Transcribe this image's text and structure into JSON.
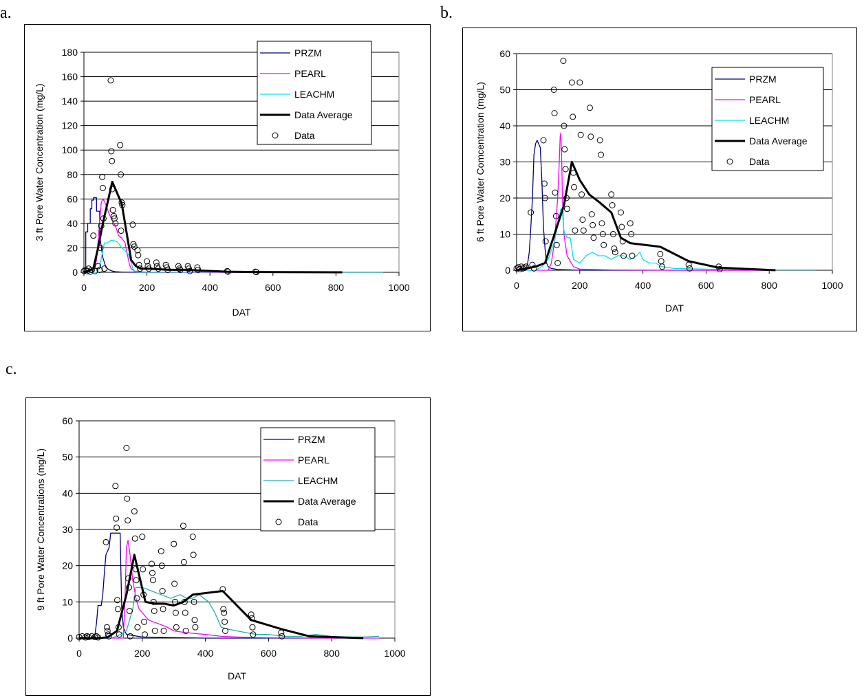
{
  "panel_letters": [
    "a.",
    "b.",
    "c."
  ],
  "chart_data": [
    {
      "type": "line",
      "ylabel": "3 ft Pore Water Concentration (mg/L)",
      "xlabel": "DAT",
      "xlim": [
        0,
        1000
      ],
      "ylim": [
        0,
        180
      ],
      "xticks": [
        0,
        200,
        400,
        600,
        800,
        1000
      ],
      "yticks": [
        0,
        20,
        40,
        60,
        80,
        100,
        120,
        140,
        160,
        180
      ],
      "grid": "horizontal",
      "legend": [
        "PRZM",
        "PEARL",
        "LEACHM",
        "Data Average",
        "Data"
      ],
      "series": [
        {
          "name": "PRZM",
          "color": "#000080",
          "x": [
            0,
            6,
            6,
            12,
            12,
            20,
            20,
            25,
            25,
            30,
            30,
            40,
            40,
            50,
            50,
            60,
            70,
            80,
            90,
            100,
            120,
            150,
            200,
            400,
            820
          ],
          "y": [
            0,
            0,
            33,
            33,
            40,
            40,
            52,
            52,
            59,
            59,
            61,
            61,
            50,
            50,
            30,
            12,
            4,
            2,
            1,
            0.5,
            0.2,
            0.1,
            0,
            0,
            0
          ]
        },
        {
          "name": "PEARL",
          "color": "#ff00ff",
          "x": [
            0,
            30,
            40,
            50,
            55,
            60,
            65,
            70,
            80,
            90,
            100,
            110,
            120,
            125,
            130,
            135,
            140,
            145,
            150,
            160,
            180,
            200,
            300,
            400,
            600,
            820
          ],
          "y": [
            0,
            0,
            10,
            42,
            57,
            60,
            58,
            55,
            48,
            42,
            38,
            30,
            28,
            26,
            25,
            18,
            12,
            6,
            3,
            1,
            0.5,
            0.2,
            0.1,
            0,
            0,
            0
          ]
        },
        {
          "name": "LEACHM",
          "color": "#00e5e5",
          "x": [
            0,
            40,
            50,
            60,
            65,
            75,
            85,
            95,
            105,
            115,
            120,
            130,
            140,
            145,
            150,
            155,
            160,
            170,
            200,
            300,
            500,
            700,
            820,
            950
          ],
          "y": [
            0,
            0,
            5,
            18,
            24,
            24,
            26,
            26,
            25,
            22,
            20,
            18,
            15,
            12,
            8,
            3,
            1,
            0.3,
            0.2,
            0.2,
            0.2,
            0.2,
            0.2,
            0.2
          ]
        },
        {
          "name": "Data Average",
          "color": "#000000",
          "x": [
            0,
            15,
            30,
            45,
            60,
            90,
            120,
            150,
            165,
            180,
            210,
            240,
            270,
            300,
            330,
            360,
            455,
            545,
            640,
            820
          ],
          "y": [
            0,
            1,
            3,
            20,
            40,
            74,
            56,
            10,
            5,
            3,
            3,
            2.5,
            2,
            2,
            2,
            1.5,
            0.5,
            0.2,
            0.1,
            0
          ]
        }
      ],
      "scatter": {
        "name": "Data",
        "x": [
          0,
          5,
          10,
          15,
          20,
          25,
          30,
          35,
          45,
          50,
          52,
          55,
          58,
          60,
          62,
          65,
          85,
          87,
          89,
          90,
          92,
          95,
          97,
          100,
          115,
          117,
          120,
          122,
          118,
          155,
          157,
          160,
          170,
          172,
          175,
          178,
          200,
          203,
          206,
          230,
          232,
          236,
          260,
          263,
          266,
          300,
          303,
          306,
          330,
          333,
          336,
          360,
          362,
          455,
          457,
          545,
          547
        ],
        "y": [
          1,
          2,
          1,
          3,
          0.5,
          2,
          30,
          1,
          5,
          2,
          20,
          38,
          78,
          69,
          44,
          3,
          157,
          99,
          91,
          68,
          51,
          46,
          44,
          40,
          104,
          80,
          57,
          55,
          34,
          39,
          23,
          21,
          18,
          14,
          6,
          3,
          9,
          5,
          3,
          8,
          5,
          3,
          6,
          4,
          2,
          5,
          3,
          2,
          5,
          3,
          1,
          4,
          2,
          1,
          0.5,
          0.5,
          0.2
        ]
      }
    },
    {
      "type": "line",
      "ylabel": "6 ft Pore Water Comcentration (mg/L)",
      "xlabel": "DAT",
      "xlim": [
        0,
        1000
      ],
      "ylim": [
        0,
        60
      ],
      "xticks": [
        0,
        200,
        400,
        600,
        800,
        1000
      ],
      "yticks": [
        0,
        10,
        20,
        30,
        40,
        50,
        60
      ],
      "grid": "horizontal",
      "legend": [
        "PRZM",
        "PEARL",
        "LEACHM",
        "Data Average",
        "Data"
      ],
      "series": [
        {
          "name": "PRZM",
          "color": "#000080",
          "x": [
            0,
            30,
            35,
            40,
            45,
            50,
            55,
            60,
            65,
            70,
            75,
            80,
            85,
            90,
            95,
            100,
            110,
            130,
            200,
            400,
            820
          ],
          "y": [
            0,
            0,
            2,
            5,
            12,
            20,
            32,
            35,
            36,
            35,
            34,
            25,
            12,
            6,
            2,
            1,
            0.5,
            0.2,
            0,
            0,
            0
          ]
        },
        {
          "name": "PEARL",
          "color": "#ff00ff",
          "x": [
            0,
            100,
            110,
            120,
            125,
            130,
            135,
            138,
            140,
            143,
            145,
            150,
            160,
            180,
            200,
            300,
            500,
            820
          ],
          "y": [
            0,
            0,
            2,
            8,
            14,
            20,
            30,
            37,
            38,
            30,
            20,
            10,
            4,
            1,
            0.3,
            0.1,
            0,
            0
          ]
        },
        {
          "name": "LEACHM",
          "color": "#00e5e5",
          "x": [
            0,
            60,
            80,
            100,
            120,
            140,
            145,
            150,
            155,
            160,
            170,
            180,
            200,
            220,
            240,
            260,
            280,
            300,
            320,
            340,
            360,
            380,
            390,
            400,
            420,
            440,
            460,
            500,
            600,
            700,
            820,
            950
          ],
          "y": [
            0,
            0,
            1,
            3,
            8,
            17,
            16,
            11,
            10,
            9,
            9,
            3,
            2,
            4,
            5,
            4,
            4,
            3,
            4,
            4,
            3,
            4,
            5,
            3,
            2,
            2,
            1,
            0.5,
            0.3,
            0.2,
            0.1,
            0.1
          ]
        },
        {
          "name": "Data Average",
          "color": "#000000",
          "x": [
            0,
            30,
            60,
            90,
            120,
            150,
            175,
            200,
            230,
            260,
            300,
            330,
            360,
            455,
            545,
            640,
            820
          ],
          "y": [
            0,
            0.5,
            1,
            2,
            10,
            18,
            30,
            25,
            21,
            19,
            16,
            9,
            7.5,
            6.5,
            2.5,
            0.7,
            0
          ]
        }
      ],
      "scatter": {
        "name": "Data",
        "x": [
          0,
          5,
          10,
          15,
          20,
          25,
          30,
          45,
          50,
          55,
          85,
          88,
          90,
          92,
          118,
          120,
          122,
          125,
          127,
          130,
          148,
          150,
          152,
          155,
          158,
          160,
          175,
          178,
          180,
          182,
          185,
          200,
          203,
          206,
          209,
          212,
          232,
          235,
          238,
          241,
          244,
          264,
          267,
          270,
          273,
          276,
          300,
          303,
          306,
          309,
          312,
          330,
          333,
          336,
          339,
          360,
          363,
          366,
          455,
          458,
          461,
          545,
          548,
          640,
          643
        ],
        "y": [
          0.5,
          0.8,
          0.3,
          1,
          0.5,
          0.7,
          1,
          16,
          1.5,
          0.5,
          36,
          24,
          20,
          8,
          50,
          43.5,
          21.5,
          15,
          7,
          2,
          58,
          40,
          33.5,
          28,
          20,
          17,
          52,
          42.5,
          27,
          23,
          11,
          52,
          37.5,
          21,
          14,
          11,
          45,
          37,
          15.5,
          12.5,
          9,
          36,
          32,
          13,
          10,
          7,
          21,
          18,
          10,
          6,
          5,
          16,
          12,
          8,
          4,
          13,
          10,
          4,
          4.5,
          2.5,
          1,
          1.5,
          0.5,
          1,
          0.3
        ]
      }
    },
    {
      "type": "line",
      "ylabel": "9 ft Pore Water Concentrations (mg/L)",
      "xlabel": "DAT",
      "xlim": [
        0,
        1000
      ],
      "ylim": [
        0,
        60
      ],
      "xticks": [
        0,
        200,
        400,
        600,
        800,
        1000
      ],
      "yticks": [
        0,
        10,
        20,
        30,
        40,
        50,
        60
      ],
      "grid": "horizontal",
      "legend": [
        "PRZM",
        "PEARL",
        "LEACHM",
        "Data Average",
        "Data"
      ],
      "series": [
        {
          "name": "PRZM",
          "color": "#000080",
          "x": [
            0,
            40,
            50,
            55,
            60,
            70,
            75,
            80,
            85,
            90,
            95,
            100,
            105,
            110,
            130,
            132,
            135,
            140,
            150,
            200,
            400,
            820
          ],
          "y": [
            0,
            0,
            1,
            4,
            9,
            9,
            12,
            18,
            23,
            24,
            25,
            29,
            29,
            29,
            29,
            20,
            8,
            3,
            1,
            0.3,
            0,
            0
          ]
        },
        {
          "name": "PEARL",
          "color": "#ff00ff",
          "x": [
            0,
            140,
            145,
            150,
            155,
            160,
            170,
            180,
            190,
            200,
            220,
            250,
            280,
            300,
            340,
            400,
            450,
            500,
            600,
            820,
            950
          ],
          "y": [
            0,
            0,
            10,
            25,
            27,
            24,
            16,
            11,
            8,
            7,
            5,
            4,
            3,
            2,
            1.5,
            1,
            0.5,
            0.3,
            0.1,
            0,
            0
          ]
        },
        {
          "name": "LEACHM",
          "color": "#20b2aa",
          "x": [
            0,
            100,
            120,
            150,
            170,
            180,
            200,
            230,
            260,
            290,
            320,
            340,
            360,
            380,
            410,
            430,
            450,
            470,
            500,
            530,
            560,
            600,
            650,
            700,
            750,
            800,
            850,
            900,
            950
          ],
          "y": [
            0,
            0,
            0.5,
            2,
            8,
            14,
            14,
            13,
            12,
            11,
            12,
            11,
            11,
            12,
            10,
            7,
            3,
            2.5,
            2,
            1.5,
            1,
            1,
            0.5,
            0.5,
            1,
            0.5,
            0.3,
            0.3,
            0.5
          ]
        },
        {
          "name": "Data Average",
          "color": "#000000",
          "x": [
            0,
            30,
            60,
            90,
            120,
            150,
            175,
            210,
            240,
            270,
            300,
            330,
            360,
            455,
            545,
            640,
            730,
            820,
            900
          ],
          "y": [
            0,
            0,
            0,
            0.2,
            2,
            12,
            23,
            10,
            9.5,
            9.5,
            9,
            10,
            12,
            13,
            5,
            2.5,
            0.5,
            0.2,
            0
          ]
        }
      ],
      "scatter": {
        "name": "Data",
        "x": [
          0,
          10,
          20,
          25,
          30,
          40,
          50,
          55,
          60,
          85,
          88,
          90,
          92,
          94,
          115,
          117,
          119,
          121,
          123,
          125,
          127,
          150,
          152,
          154,
          156,
          158,
          160,
          162,
          175,
          177,
          179,
          181,
          183,
          185,
          200,
          202,
          204,
          206,
          208,
          230,
          232,
          234,
          236,
          238,
          240,
          260,
          262,
          264,
          266,
          268,
          300,
          302,
          304,
          306,
          308,
          330,
          332,
          334,
          336,
          338,
          360,
          362,
          364,
          366,
          368,
          455,
          457,
          459,
          461,
          463,
          545,
          547,
          549,
          551,
          640,
          642
        ],
        "y": [
          0.3,
          0.5,
          0.2,
          0.5,
          0.3,
          0.5,
          0.3,
          0.5,
          0.2,
          26.5,
          3,
          2,
          1,
          0.5,
          42,
          33,
          30.5,
          10.5,
          8,
          3,
          1,
          52.5,
          38.5,
          32.5,
          16.5,
          14,
          7.5,
          0.5,
          35,
          27.5,
          19,
          16,
          11,
          3,
          28,
          19,
          12,
          4.5,
          1,
          20.5,
          18,
          16,
          10,
          7.5,
          2,
          24,
          20,
          13,
          8,
          2,
          26,
          15,
          10,
          7,
          3,
          31,
          21,
          10,
          7,
          2,
          28,
          23,
          10,
          5,
          3,
          13.5,
          8,
          7,
          4.5,
          2,
          6.5,
          5.5,
          3,
          1,
          1.5,
          0.5
        ]
      }
    }
  ]
}
